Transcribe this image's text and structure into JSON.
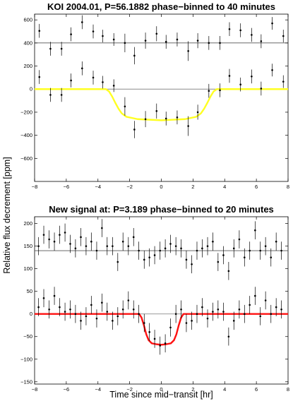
{
  "ylabel": "Relative flux decrement [ppm]",
  "chart_data": [
    {
      "type": "scatter",
      "title": "KOI 2004.01, P=56.1882 phase−binned to 40 minutes",
      "xlabel": "",
      "xlim": [
        -8,
        8
      ],
      "ylim": [
        -800,
        650
      ],
      "xticks": [
        -8,
        -6,
        -4,
        -2,
        0,
        2,
        4,
        6,
        8
      ],
      "xtick_labels": [
        "−8",
        "−6",
        "−4",
        "−2",
        "0",
        "2",
        "4",
        "6",
        "8"
      ],
      "yticks": [
        600,
        400,
        200,
        0,
        -200,
        -400,
        -600
      ],
      "ytick_labels": [
        "600",
        "400",
        "200",
        "0",
        "−200",
        "−400",
        "−600"
      ],
      "offset": 400,
      "model_color": "#ffff22",
      "x": [
        -7.7,
        -7.0,
        -6.3,
        -5.7,
        -5.0,
        -4.3,
        -3.7,
        -3.0,
        -2.3,
        -1.7,
        -1.0,
        -0.3,
        0.3,
        1.0,
        1.7,
        2.3,
        3.0,
        3.7,
        4.3,
        5.0,
        5.7,
        6.3,
        7.0,
        7.7
      ],
      "y": [
        105,
        -50,
        -50,
        75,
        180,
        100,
        60,
        30,
        -150,
        -350,
        -260,
        -190,
        -255,
        -245,
        -320,
        -200,
        -15,
        -10,
        115,
        40,
        110,
        5,
        165,
        65
      ],
      "err": [
        60,
        60,
        60,
        60,
        60,
        60,
        55,
        55,
        80,
        75,
        70,
        65,
        60,
        60,
        85,
        65,
        60,
        60,
        60,
        60,
        60,
        60,
        55,
        55
      ],
      "series": [
        {
          "x": [
            -7.7,
            -7.0,
            -6.3,
            -5.7,
            -5.0,
            -4.3,
            -3.7,
            -3.0,
            -2.3,
            -1.7,
            -1.0,
            -0.3,
            0.3,
            1.0,
            1.7,
            2.3,
            3.0,
            3.7,
            4.3,
            5.0,
            5.7,
            6.3,
            7.0,
            7.7
          ],
          "y": [
            505,
            350,
            350,
            475,
            580,
            500,
            460,
            430,
            400,
            290,
            420,
            480,
            410,
            430,
            330,
            420,
            400,
            400,
            520,
            510,
            470,
            415,
            570,
            460
          ]
        }
      ],
      "model": {
        "x": [
          -8,
          -3.5,
          -3.3,
          -3.1,
          -2.9,
          -2.7,
          -2.5,
          -2.2,
          -1.5,
          0,
          1.5,
          2.2,
          2.5,
          2.7,
          2.9,
          3.1,
          3.3,
          3.5,
          8
        ],
        "y": [
          0,
          0,
          -20,
          -65,
          -120,
          -170,
          -210,
          -240,
          -260,
          -270,
          -260,
          -240,
          -210,
          -170,
          -120,
          -65,
          -20,
          0,
          0
        ]
      }
    },
    {
      "type": "scatter",
      "title": "New signal at: P=3.189 phase−binned to 20 minutes",
      "xlabel": "Time since mid−transit [hr]",
      "xlim": [
        -8,
        8
      ],
      "ylim": [
        -155,
        215
      ],
      "xticks": [
        -8,
        -6,
        -4,
        -2,
        0,
        2,
        4,
        6,
        8
      ],
      "xtick_labels": [
        "−8",
        "−6",
        "−4",
        "−2",
        "0",
        "2",
        "4",
        "6",
        "8"
      ],
      "yticks": [
        200,
        150,
        100,
        50,
        0,
        -50,
        -100,
        -150
      ],
      "ytick_labels": [
        "200",
        "150",
        "100",
        "50",
        "0",
        "−50",
        "−100",
        "−150"
      ],
      "offset": 140,
      "model_color": "#ff1111",
      "x": [
        -7.75,
        -7.42,
        -7.08,
        -6.75,
        -6.42,
        -6.08,
        -5.75,
        -5.42,
        -5.08,
        -4.75,
        -4.42,
        -4.08,
        -3.75,
        -3.42,
        -3.08,
        -2.75,
        -2.42,
        -2.08,
        -1.75,
        -1.42,
        -1.08,
        -0.75,
        -0.42,
        -0.08,
        0.25,
        0.58,
        0.92,
        1.25,
        1.58,
        1.92,
        2.25,
        2.58,
        2.92,
        3.25,
        3.58,
        3.92,
        4.25,
        4.58,
        4.92,
        5.25,
        5.58,
        5.92,
        6.25,
        6.58,
        6.92,
        7.25,
        7.58
      ],
      "y": [
        15,
        35,
        10,
        40,
        15,
        5,
        10,
        0,
        -15,
        -5,
        20,
        -10,
        25,
        5,
        -15,
        -5,
        10,
        30,
        10,
        0,
        -20,
        -40,
        -55,
        -70,
        -65,
        -30,
        0,
        10,
        -20,
        -15,
        0,
        15,
        -10,
        5,
        10,
        5,
        -50,
        -15,
        10,
        0,
        20,
        40,
        -5,
        30,
        0,
        15,
        10
      ],
      "err": [
        20,
        20,
        20,
        20,
        20,
        20,
        20,
        20,
        20,
        20,
        20,
        20,
        20,
        20,
        20,
        20,
        20,
        20,
        20,
        20,
        20,
        20,
        20,
        20,
        20,
        20,
        20,
        20,
        20,
        20,
        20,
        20,
        20,
        20,
        20,
        20,
        20,
        20,
        20,
        20,
        20,
        20,
        20,
        20,
        20,
        20,
        20
      ],
      "series": [
        {
          "x": [
            -7.75,
            -7.42,
            -7.08,
            -6.75,
            -6.42,
            -6.08,
            -5.75,
            -5.42,
            -5.08,
            -4.75,
            -4.42,
            -4.08,
            -3.75,
            -3.42,
            -3.08,
            -2.75,
            -2.42,
            -2.08,
            -1.75,
            -1.42,
            -1.08,
            -0.75,
            -0.42,
            -0.08,
            0.25,
            0.58,
            0.92,
            1.25,
            1.58,
            1.92,
            2.25,
            2.58,
            2.92,
            3.25,
            3.58,
            3.92,
            4.25,
            4.58,
            4.92,
            5.25,
            5.58,
            5.92,
            6.25,
            6.58,
            6.92,
            7.25,
            7.58
          ],
          "y": [
            150,
            175,
            165,
            160,
            175,
            180,
            155,
            145,
            170,
            150,
            160,
            140,
            190,
            150,
            150,
            115,
            160,
            150,
            170,
            140,
            120,
            125,
            130,
            140,
            145,
            155,
            150,
            145,
            120,
            110,
            140,
            145,
            150,
            160,
            115,
            130,
            95,
            145,
            165,
            125,
            140,
            185,
            140,
            150,
            125,
            160,
            140
          ]
        }
      ],
      "model": {
        "x": [
          -8,
          -1.4,
          -1.25,
          -1.1,
          -0.95,
          -0.8,
          -0.6,
          -0.3,
          0,
          0.3,
          0.6,
          0.8,
          0.95,
          1.1,
          1.25,
          1.4,
          8
        ],
        "y": [
          0,
          0,
          -8,
          -25,
          -45,
          -58,
          -65,
          -67,
          -68,
          -67,
          -65,
          -58,
          -45,
          -25,
          -8,
          0,
          0
        ]
      }
    }
  ]
}
